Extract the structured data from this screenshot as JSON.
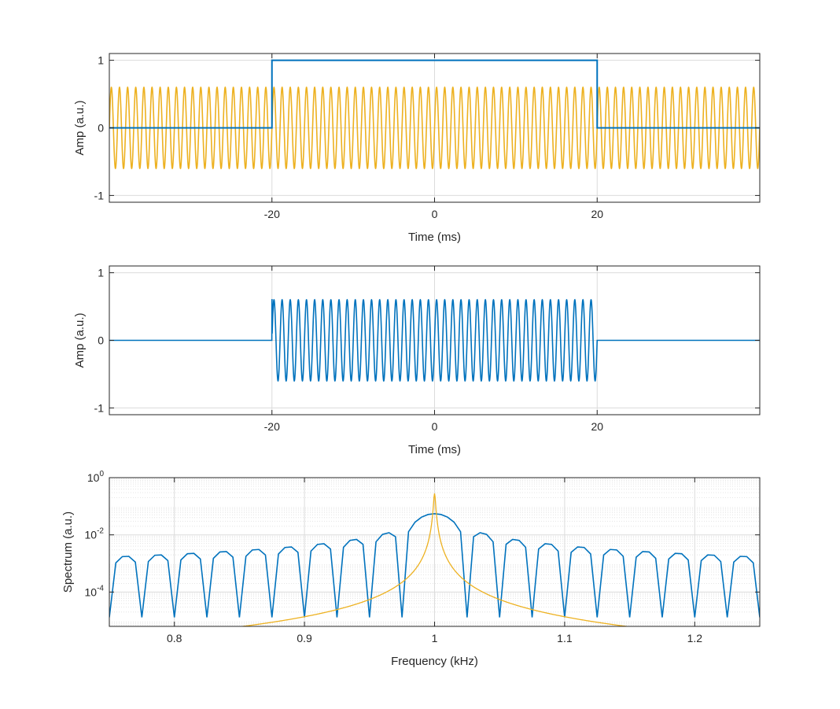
{
  "colors": {
    "blue": "#0072BD",
    "yellow": "#EDB120",
    "axis": "#262626",
    "grid": "#dcdcdc"
  },
  "chart_data": [
    {
      "type": "line",
      "xlabel": "Time  (ms)",
      "ylabel": "Amp  (a.u.)",
      "xlim": [
        -40,
        40
      ],
      "ylim": [
        -1.1,
        1.1
      ],
      "xticks": [
        -20,
        0,
        20
      ],
      "xtick_labels": [
        "-20",
        "0",
        "20"
      ],
      "yticks": [
        -1,
        0,
        1
      ],
      "ytick_labels": [
        "-1",
        "0",
        "1"
      ],
      "grid": true,
      "series": [
        {
          "kind": "sine",
          "color": "yellow",
          "amplitude": 0.6,
          "frequency_khz": 1.0,
          "t_range": [
            -40,
            40
          ]
        },
        {
          "kind": "rect",
          "color": "blue",
          "points": [
            [
              -40,
              0
            ],
            [
              -20,
              0
            ],
            [
              -20,
              1
            ],
            [
              20,
              1
            ],
            [
              20,
              0
            ],
            [
              40,
              0
            ]
          ]
        }
      ]
    },
    {
      "type": "line",
      "xlabel": "Time  (ms)",
      "ylabel": "Amp  (a.u.)",
      "xlim": [
        -40,
        40
      ],
      "ylim": [
        -1.1,
        1.1
      ],
      "xticks": [
        -20,
        0,
        20
      ],
      "xtick_labels": [
        "-20",
        "0",
        "20"
      ],
      "yticks": [
        -1,
        0,
        1
      ],
      "ytick_labels": [
        "-1",
        "0",
        "1"
      ],
      "grid": true,
      "series": [
        {
          "kind": "gated-sine",
          "color": "blue",
          "amplitude": 0.6,
          "frequency_khz": 1.0,
          "t_range": [
            -40,
            40
          ],
          "gate": [
            -20,
            20
          ]
        }
      ]
    },
    {
      "type": "line",
      "xlabel": "Frequency  (kHz)",
      "ylabel": "Spectrum  (a.u.)",
      "xlim": [
        0.75,
        1.25
      ],
      "ylim_log10": [
        -5.2,
        0
      ],
      "yscale": "log",
      "xticks": [
        0.8,
        0.9,
        1.0,
        1.1,
        1.2
      ],
      "xtick_labels": [
        "0.8",
        "0.9",
        "1",
        "1.1",
        "1.2"
      ],
      "yticks_log10": [
        -4,
        -2,
        0
      ],
      "ytick_labels": [
        {
          "base": "10",
          "exp": "-4"
        },
        {
          "base": "10",
          "exp": "-2"
        },
        {
          "base": "10",
          "exp": "0"
        }
      ],
      "grid": true,
      "minor_grid": true,
      "series": [
        {
          "kind": "sinc-spectrum",
          "color": "blue",
          "center_khz": 1.0,
          "peak": 0.055,
          "null_spacing_khz": 0.025,
          "step_khz": 0.005
        },
        {
          "kind": "lorentz-spectrum",
          "color": "yellow",
          "center_khz": 1.0,
          "peak": 0.28,
          "width_khz": 0.0007
        }
      ]
    }
  ]
}
